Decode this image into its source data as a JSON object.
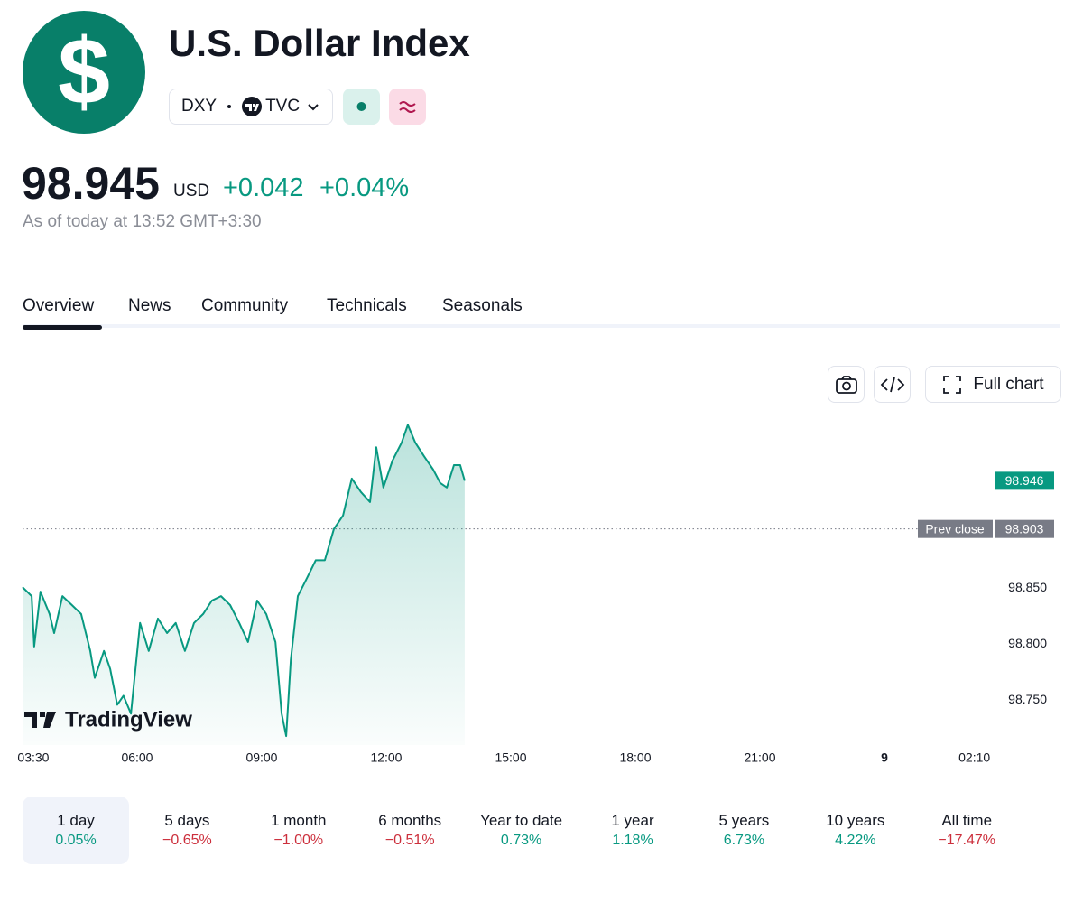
{
  "header": {
    "logo_text": "$",
    "title": "U.S. Dollar Index",
    "symbol": "DXY",
    "exchange": "TVC",
    "price": "98.945",
    "currency": "USD",
    "change": "+0.042",
    "change_percent": "+0.04%",
    "as_of": "As of today at 13:52 GMT+3:30"
  },
  "tabs": [
    "Overview",
    "News",
    "Community",
    "Technicals",
    "Seasonals"
  ],
  "toolbar": {
    "full_chart": "Full chart"
  },
  "chart_data": {
    "type": "line",
    "color": "#089981",
    "watermark": "TradingView",
    "x": [
      3.24,
      3.46,
      3.52,
      3.67,
      3.89,
      4.0,
      4.2,
      4.43,
      4.65,
      4.87,
      4.98,
      5.2,
      5.35,
      5.52,
      5.67,
      5.85,
      5.96,
      6.07,
      6.28,
      6.5,
      6.72,
      6.93,
      7.15,
      7.37,
      7.59,
      7.8,
      8.02,
      8.24,
      8.46,
      8.67,
      8.89,
      9.11,
      9.33,
      9.48,
      9.59,
      9.7,
      9.87,
      10.09,
      10.3,
      10.52,
      10.74,
      10.96,
      11.17,
      11.39,
      11.61,
      11.76,
      11.93,
      12.15,
      12.37,
      12.52,
      12.7,
      12.91,
      13.13,
      13.3,
      13.46,
      13.63,
      13.78,
      13.89
    ],
    "values": [
      98.851,
      98.843,
      98.798,
      98.847,
      98.827,
      98.81,
      98.843,
      98.835,
      98.827,
      98.794,
      98.77,
      98.794,
      98.778,
      98.746,
      98.754,
      98.738,
      98.778,
      98.819,
      98.794,
      98.823,
      98.81,
      98.819,
      98.794,
      98.819,
      98.827,
      98.839,
      98.843,
      98.835,
      98.819,
      98.802,
      98.839,
      98.827,
      98.802,
      98.738,
      98.718,
      98.786,
      98.843,
      98.859,
      98.875,
      98.875,
      98.903,
      98.915,
      98.948,
      98.936,
      98.927,
      98.976,
      98.94,
      98.964,
      98.98,
      98.996,
      98.98,
      98.968,
      98.956,
      98.944,
      98.94,
      98.96,
      98.96,
      98.946
    ],
    "xlim": [
      3.24,
      26.5
    ],
    "xticks": [
      {
        "value": 3.5,
        "label": "03:30"
      },
      {
        "value": 6,
        "label": "06:00"
      },
      {
        "value": 9,
        "label": "09:00"
      },
      {
        "value": 12,
        "label": "12:00"
      },
      {
        "value": 15,
        "label": "15:00"
      },
      {
        "value": 18,
        "label": "18:00"
      },
      {
        "value": 21,
        "label": "21:00"
      },
      {
        "value": 24,
        "label": "9",
        "bold": true
      },
      {
        "value": 26.1667,
        "label": "02:10"
      }
    ],
    "ylim": [
      98.71,
      99.01
    ],
    "yticks": [
      {
        "value": 98.75,
        "label": "98.750"
      },
      {
        "value": 98.8,
        "label": "98.800"
      },
      {
        "value": 98.85,
        "label": "98.850"
      }
    ],
    "last_price": {
      "value": 98.946,
      "label": "98.946"
    },
    "prev_close": {
      "name": "Prev close",
      "value": 98.903,
      "label": "98.903"
    }
  },
  "periods": [
    {
      "label": "1 day",
      "change": "0.05%"
    },
    {
      "label": "5 days",
      "change": "−0.65%"
    },
    {
      "label": "1 month",
      "change": "−1.00%"
    },
    {
      "label": "6 months",
      "change": "−0.51%"
    },
    {
      "label": "Year to date",
      "change": "0.73%"
    },
    {
      "label": "1 year",
      "change": "1.18%"
    },
    {
      "label": "5 years",
      "change": "6.73%"
    },
    {
      "label": "10 years",
      "change": "4.22%"
    },
    {
      "label": "All time",
      "change": "−17.47%"
    }
  ]
}
